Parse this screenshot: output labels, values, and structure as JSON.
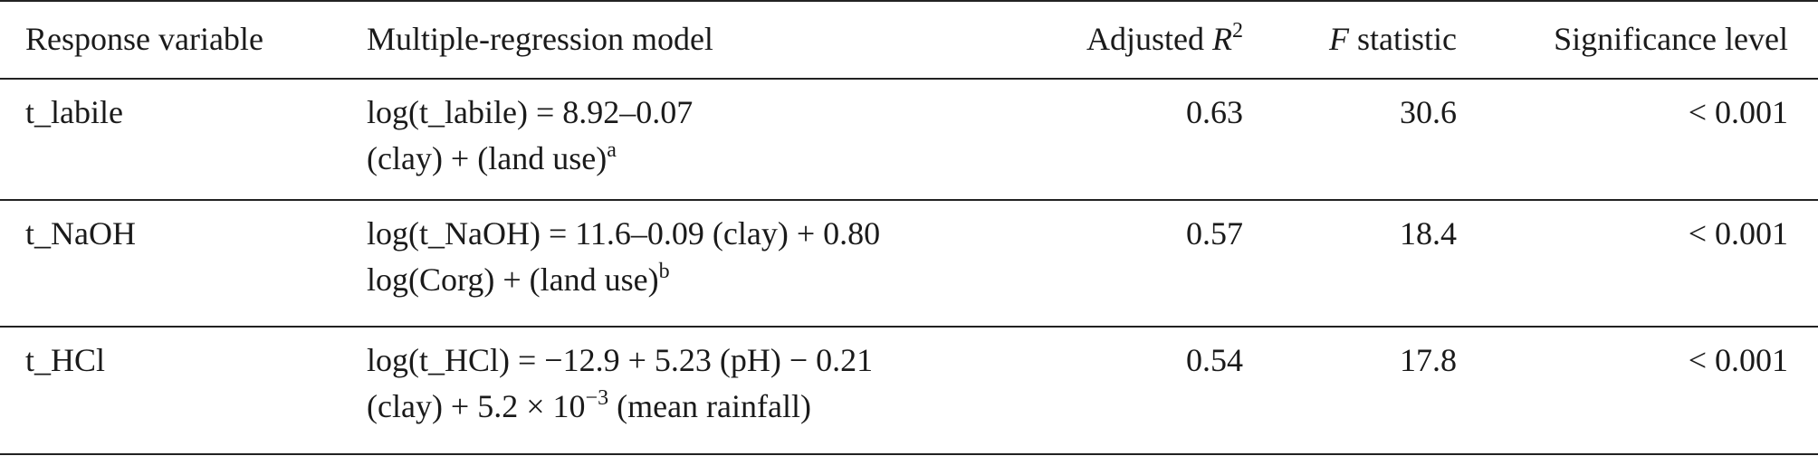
{
  "table": {
    "header": [
      [
        {
          "text": "Response variable"
        }
      ],
      [
        {
          "text": "Multiple-regression model"
        }
      ],
      [
        {
          "text": "Adjusted "
        },
        {
          "text": "R",
          "italic": true
        },
        {
          "text": "2",
          "sup": true
        }
      ],
      [
        {
          "text": "F",
          "italic": true
        },
        {
          "text": " statistic"
        }
      ],
      [
        {
          "text": "Significance level"
        }
      ]
    ],
    "rows": [
      {
        "response": "t_labile",
        "model": [
          [
            {
              "text": "log(t_labile) = 8.92–0.07"
            }
          ],
          [
            {
              "text": "(clay) + (land use)"
            },
            {
              "text": "a",
              "sup": true
            }
          ]
        ],
        "adjusted_r2": 0.63,
        "f_statistic": 30.6,
        "significance": "< 0.001"
      },
      {
        "response": "t_NaOH",
        "model": [
          [
            {
              "text": "log(t_NaOH) = 11.6–0.09 (clay) + 0.80"
            }
          ],
          [
            {
              "text": "log(Corg) + (land use)"
            },
            {
              "text": "b",
              "sup": true
            }
          ]
        ],
        "adjusted_r2": 0.57,
        "f_statistic": 18.4,
        "significance": "< 0.001"
      },
      {
        "response": "t_HCl",
        "model": [
          [
            {
              "text": "log(t_HCl) = −12.9 + 5.23 (pH) − 0.21"
            }
          ],
          [
            {
              "text": "(clay) + 5.2 × 10"
            },
            {
              "text": "−3",
              "sup": true
            },
            {
              "text": " (mean rainfall)"
            }
          ]
        ],
        "adjusted_r2": 0.54,
        "f_statistic": 17.8,
        "significance": "< 0.001"
      }
    ]
  }
}
